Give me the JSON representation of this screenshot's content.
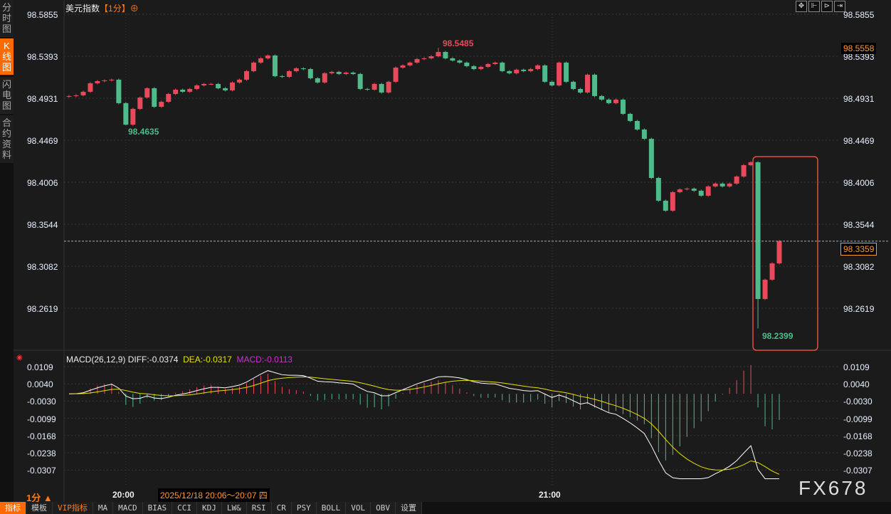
{
  "sidebar": {
    "items": [
      {
        "label": "分时图"
      },
      {
        "label": "K线图",
        "active": true
      },
      {
        "label": "闪电图"
      },
      {
        "label": "合约资料"
      }
    ]
  },
  "header": {
    "title": "美元指数",
    "timeframe": "【1分】",
    "target_icon": "crosshair-circle-icon"
  },
  "toolbar": {
    "icons": [
      "move-icon",
      "zoom-in-axis-icon",
      "zoom-out-axis-icon",
      "scroll-right-icon"
    ]
  },
  "colors": {
    "up": "#e9495a",
    "down": "#4fbb8a",
    "diff": "#ffffff",
    "dea": "#e8e000",
    "macd_label": "#cc33cc",
    "accent": "#ff6a00",
    "highlight_box": "#e8503a"
  },
  "chart_data": {
    "type": "candlestick",
    "symbol": "美元指数",
    "interval": "1分",
    "start_time": "19:52",
    "price_axis": {
      "ticks": [
        "98.5855",
        "98.5393",
        "98.4931",
        "98.4469",
        "98.4006",
        "98.3544",
        "98.3082",
        "98.2619"
      ],
      "range": [
        98.5855,
        98.23
      ]
    },
    "time_ticks": [
      "20:00",
      "21:00"
    ],
    "closes": [
      98.4955,
      98.4963,
      98.5002,
      98.5096,
      98.5119,
      98.5127,
      98.5135,
      98.4877,
      98.464,
      98.4814,
      98.4939,
      98.5041,
      98.4837,
      98.4892,
      98.4978,
      98.5025,
      98.5002,
      98.5033,
      98.5072,
      98.5088,
      98.5088,
      98.5041,
      98.5018,
      98.5104,
      98.5135,
      98.5229,
      98.5323,
      98.537,
      98.5401,
      98.5174,
      98.5166,
      98.5229,
      98.526,
      98.5252,
      98.5151,
      98.5104,
      98.5206,
      98.5221,
      98.5198,
      98.5213,
      98.5198,
      98.5033,
      98.5025,
      98.5088,
      98.4994,
      98.5112,
      98.5268,
      98.5292,
      98.5323,
      98.5362,
      98.537,
      98.5393,
      98.544,
      98.537,
      98.5346,
      98.5323,
      98.5284,
      98.5252,
      98.5276,
      98.5307,
      98.5323,
      98.5229,
      98.5206,
      98.5245,
      98.5229,
      98.5252,
      98.5292,
      98.5112,
      98.5072,
      98.5323,
      98.5112,
      98.5033,
      98.4994,
      98.519,
      98.4955,
      98.4916,
      98.4877,
      98.4916,
      98.4759,
      98.4681,
      98.4587,
      98.4485,
      98.4054,
      98.3804,
      98.3694,
      98.3898,
      98.3929,
      98.3937,
      98.3914,
      98.3859,
      98.3961,
      98.3992,
      98.3961,
      98.3992,
      98.407,
      98.4195,
      98.4227,
      98.2723,
      98.2935,
      98.3115,
      98.3359
    ],
    "annotations": {
      "high": "98.5485",
      "low_left": "98.4635",
      "low": "98.2399"
    },
    "last_price": "98.3359",
    "crosshair_price": "98.5558",
    "macd": {
      "label": "MACD(26,12,9)",
      "diff": "DIFF:-0.0374",
      "dea": "DEA:-0.0317",
      "macd": "MACD:-0.0113",
      "ticks": [
        "0.0109",
        "0.0040",
        "-0.0030",
        "-0.0099",
        "-0.0168",
        "-0.0238",
        "-0.0307"
      ],
      "range": [
        0.0109,
        -0.0307
      ]
    }
  },
  "footer": {
    "timeframe": "1分 ▲",
    "crosshair_date": "2025/12/18 20:06～20:07 四",
    "tabs": [
      "指标",
      "模板",
      "VIP指标",
      "MA",
      "MACD",
      "BIAS",
      "CCI",
      "KDJ",
      "LW&",
      "RSI",
      "CR",
      "PSY",
      "BOLL",
      "VOL",
      "OBV",
      "设置"
    ]
  },
  "brand": "FX678"
}
